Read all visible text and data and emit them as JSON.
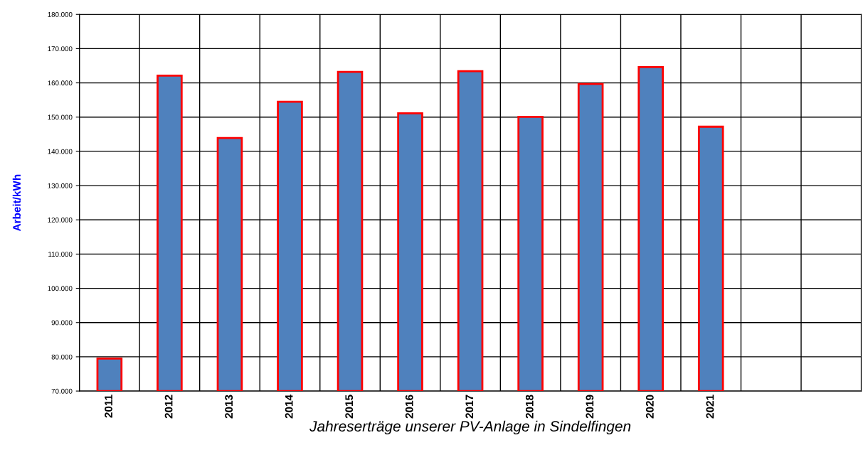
{
  "chart_data": {
    "type": "bar",
    "xlabel": "Jahreserträge unserer PV-Anlage in Sindelfingen",
    "ylabel": "Arbeit/kWh",
    "categories": [
      "2011",
      "2012",
      "2013",
      "2014",
      "2015",
      "2016",
      "2017",
      "2018",
      "2019",
      "2020",
      "2021",
      null,
      null
    ],
    "values": [
      79500,
      162100,
      143900,
      154500,
      163200,
      151100,
      163400,
      150100,
      159700,
      164600,
      147200,
      null,
      null
    ],
    "color": "#4f81bd",
    "ylim": [
      70000,
      180000
    ],
    "yticks": [
      {
        "value": 70000,
        "label": "70.000"
      },
      {
        "value": 80000,
        "label": "80.000"
      },
      {
        "value": 90000,
        "label": "90.000"
      },
      {
        "value": 100000,
        "label": "100.000"
      },
      {
        "value": 110000,
        "label": "110.000"
      },
      {
        "value": 120000,
        "label": "120.000"
      },
      {
        "value": 130000,
        "label": "130.000"
      },
      {
        "value": 140000,
        "label": "140.000"
      },
      {
        "value": 150000,
        "label": "150.000"
      },
      {
        "value": 160000,
        "label": "160.000"
      },
      {
        "value": 170000,
        "label": "170.000"
      },
      {
        "value": 180000,
        "label": "180.000"
      }
    ],
    "grid": true
  }
}
